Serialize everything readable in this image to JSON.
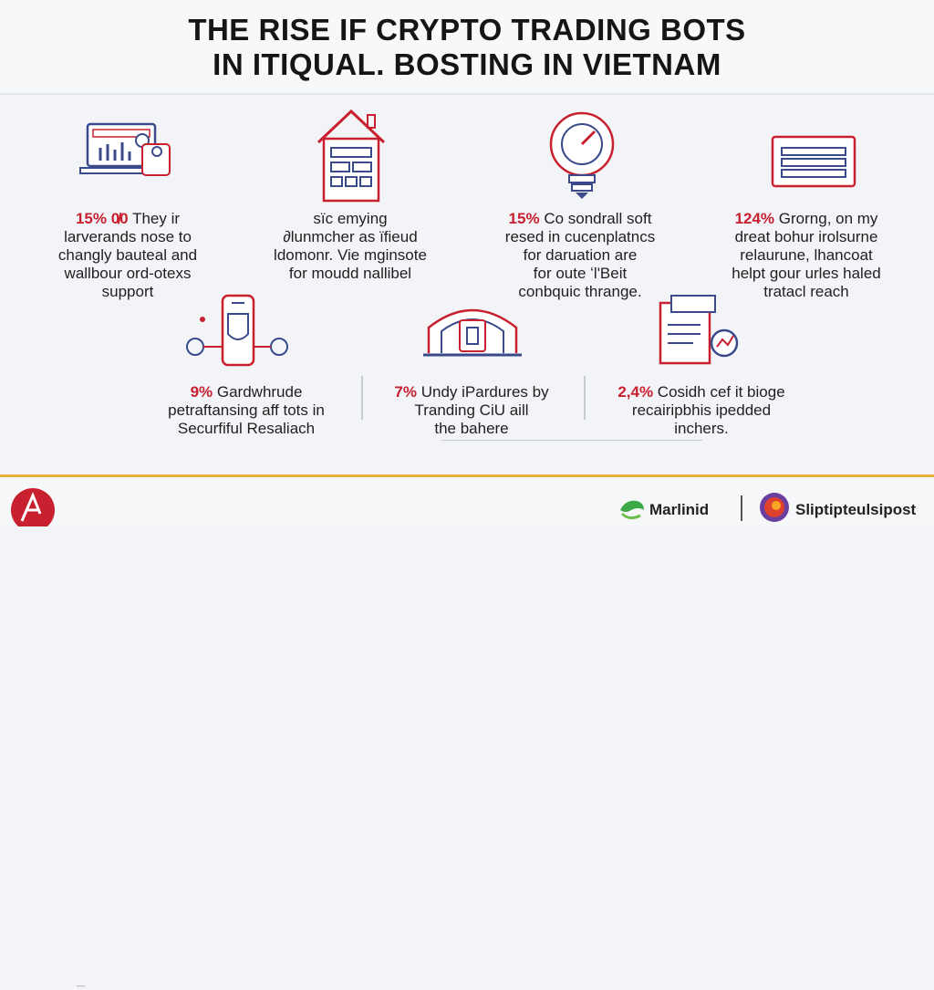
{
  "title": {
    "line1": "THE RISE IF CRYPTO TRADING BOTS",
    "line2": "IN ITIQUAL. BOSTING IN VIETNAM"
  },
  "cards": [
    {
      "stat": "15% 0̸0",
      "lines": [
        "They ir",
        "larverands nose to",
        "changly bauteal and",
        "wallbour ord-otexs",
        "support"
      ]
    },
    {
      "stat": "",
      "lines": [
        "sïc emying",
        "∂lunmcher as ïfieud",
        "ldomonr. Vie mginsote",
        "for moudd nallibel"
      ]
    },
    {
      "stat": "15%",
      "lines": [
        "Co sondrall soft",
        "resed in cucenplatncs",
        "for daruation are",
        "for oute ʻl'Beit",
        "conbquic thrange."
      ]
    },
    {
      "stat": "124%",
      "lines": [
        "Grorng, on my",
        "dreat bohur irolsurne",
        "relaurune, lhancoat",
        "helpt gour urles haled",
        "tratacl reach"
      ]
    },
    {
      "stat": "9%",
      "lines": [
        "Gardwhrude",
        "petraftansing aff tots in",
        "Securfiful Resaliach"
      ]
    },
    {
      "stat": "7%",
      "lines": [
        "Undy iPardures by",
        "Tranding CiU aill",
        "the bahere"
      ]
    },
    {
      "stat": "2,4%",
      "lines": [
        "Cosidh cef it bioge",
        "recairipbhis ipedded",
        "inchers."
      ]
    }
  ],
  "footer": {
    "brand1": "Marlinid",
    "brand2": "Sliptipteulsipost",
    "small_text": "—"
  },
  "colors": {
    "accent_red": "#c8202f",
    "icon_blue": "#3a4a8a",
    "gold_bar": "#e9b13a"
  }
}
